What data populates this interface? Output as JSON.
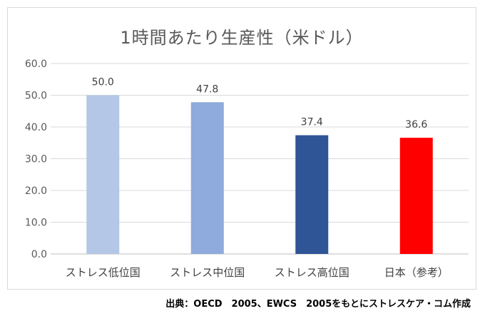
{
  "chart_data": {
    "type": "bar",
    "title": "1時間あたり生産性（米ドル）",
    "categories": [
      "ストレス低位国",
      "ストレス中位国",
      "ストレス高位国",
      "日本（参考）"
    ],
    "values": [
      50.0,
      47.8,
      37.4,
      36.6
    ],
    "value_labels": [
      "50.0",
      "47.8",
      "37.4",
      "36.6"
    ],
    "bar_colors": [
      "#b4c7e7",
      "#8faadc",
      "#2f5597",
      "#ff0000"
    ],
    "ylim": [
      0,
      60
    ],
    "yticks": [
      0,
      10,
      20,
      30,
      40,
      50,
      60
    ],
    "ytick_labels": [
      "0.0",
      "10.0",
      "20.0",
      "30.0",
      "40.0",
      "50.0",
      "60.0"
    ],
    "xlabel": "",
    "ylabel": "",
    "grid": true,
    "legend": "none"
  },
  "source": "出典：OECD　2005、EWCS　2005をもとにストレスケア・コム作成"
}
